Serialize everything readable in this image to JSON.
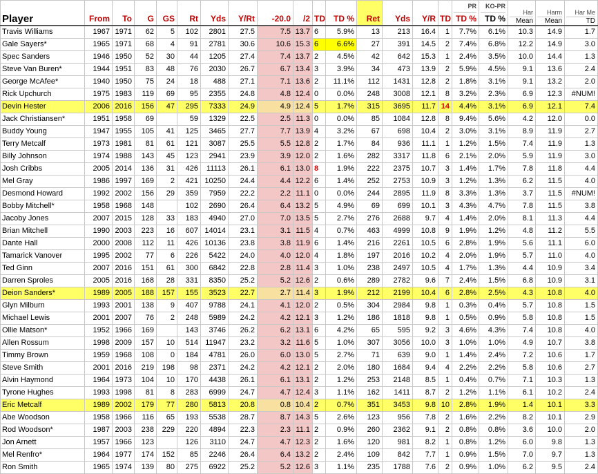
{
  "headers": {
    "player": "Player",
    "from": "From",
    "to": "To",
    "g": "G",
    "gs": "GS",
    "rt": "Rt",
    "yds": "Yds",
    "yrt": "Y/Rt",
    "minus20": "-20.0",
    "div2": "/2",
    "td": "TD",
    "tdpct": "TD %",
    "ret": "Ret",
    "yds2": "Yds",
    "yr": "Y/R",
    "td2": "TD",
    "tdpct2": "TD %",
    "pr_top": "PR",
    "kopr_top": "KO-PR",
    "kopr_td": "TD %",
    "harmean_top": "Har",
    "harmean": "Mean",
    "harm_top": "Harm",
    "harm": "Mean",
    "harme_top": "Har Me",
    "harme": "TD"
  },
  "rows": [
    {
      "name": "Travis Williams",
      "from": "1967",
      "to": "1971",
      "g": "62",
      "gs": "5",
      "rt": "102",
      "yds": "2801",
      "yrt": "27.5",
      "m20": "7.5",
      "d2": "13.7",
      "td": "6",
      "tdp": "5.9%",
      "ret": "13",
      "yds2": "213",
      "yr": "16.4",
      "td2": "1",
      "tdp2": "7.7%",
      "kopr": "6.1%",
      "hm": "10.3",
      "hm2": "14.9",
      "hm3": "1.7"
    },
    {
      "name": "Gale Sayers*",
      "from": "1965",
      "to": "1971",
      "g": "68",
      "gs": "4",
      "rt": "91",
      "yds": "2781",
      "yrt": "30.6",
      "m20": "10.6",
      "d2": "15.3",
      "td": "6",
      "tdp": "6.6%",
      "ret": "27",
      "yds2": "391",
      "yr": "14.5",
      "td2": "2",
      "tdp2": "7.4%",
      "kopr": "6.8%",
      "hm": "12.2",
      "hm2": "14.9",
      "hm3": "3.0",
      "yelTd": true
    },
    {
      "name": "Spec Sanders",
      "from": "1946",
      "to": "1950",
      "g": "52",
      "gs": "30",
      "rt": "44",
      "yds": "1205",
      "yrt": "27.4",
      "m20": "7.4",
      "d2": "13.7",
      "td": "2",
      "tdp": "4.5%",
      "ret": "42",
      "yds2": "642",
      "yr": "15.3",
      "td2": "1",
      "tdp2": "2.4%",
      "kopr": "3.5%",
      "hm": "10.0",
      "hm2": "14.4",
      "hm3": "1.3"
    },
    {
      "name": "Steve Van Buren*",
      "from": "1944",
      "to": "1951",
      "g": "83",
      "gs": "48",
      "rt": "76",
      "yds": "2030",
      "yrt": "26.7",
      "m20": "6.7",
      "d2": "13.4",
      "td": "3",
      "tdp": "3.9%",
      "ret": "34",
      "yds2": "473",
      "yr": "13.9",
      "td2": "2",
      "tdp2": "5.9%",
      "kopr": "4.5%",
      "hm": "9.1",
      "hm2": "13.6",
      "hm3": "2.4"
    },
    {
      "name": "George McAfee*",
      "from": "1940",
      "to": "1950",
      "g": "75",
      "gs": "24",
      "rt": "18",
      "yds": "488",
      "yrt": "27.1",
      "m20": "7.1",
      "d2": "13.6",
      "td": "2",
      "tdp": "11.1%",
      "ret": "112",
      "yds2": "1431",
      "yr": "12.8",
      "td2": "2",
      "tdp2": "1.8%",
      "kopr": "3.1%",
      "hm": "9.1",
      "hm2": "13.2",
      "hm3": "2.0"
    },
    {
      "name": "Rick Upchurch",
      "from": "1975",
      "to": "1983",
      "g": "119",
      "gs": "69",
      "rt": "95",
      "yds": "2355",
      "yrt": "24.8",
      "m20": "4.8",
      "d2": "12.4",
      "td": "0",
      "tdp": "0.0%",
      "ret": "248",
      "yds2": "3008",
      "yr": "12.1",
      "td2": "8",
      "tdp2": "3.2%",
      "kopr": "2.3%",
      "hm": "6.9",
      "hm2": "12.3",
      "hm3": "#NUM!"
    },
    {
      "name": "Devin Hester",
      "from": "2006",
      "to": "2016",
      "g": "156",
      "gs": "47",
      "rt": "295",
      "yds": "7333",
      "yrt": "24.9",
      "m20": "4.9",
      "d2": "12.4",
      "td": "5",
      "tdp": "1.7%",
      "ret": "315",
      "yds2": "3695",
      "yr": "11.7",
      "td2": "14",
      "tdp2": "4.4%",
      "kopr": "3.1%",
      "hm": "6.9",
      "hm2": "12.1",
      "hm3": "7.4",
      "hl": true,
      "redTd2": true
    },
    {
      "name": "Jack Christiansen*",
      "from": "1951",
      "to": "1958",
      "g": "69",
      "gs": "",
      "rt": "59",
      "yds": "1329",
      "yrt": "22.5",
      "m20": "2.5",
      "d2": "11.3",
      "td": "0",
      "tdp": "0.0%",
      "ret": "85",
      "yds2": "1084",
      "yr": "12.8",
      "td2": "8",
      "tdp2": "9.4%",
      "kopr": "5.6%",
      "hm": "4.2",
      "hm2": "12.0",
      "hm3": "0.0"
    },
    {
      "name": "Buddy Young",
      "from": "1947",
      "to": "1955",
      "g": "105",
      "gs": "41",
      "rt": "125",
      "yds": "3465",
      "yrt": "27.7",
      "m20": "7.7",
      "d2": "13.9",
      "td": "4",
      "tdp": "3.2%",
      "ret": "67",
      "yds2": "698",
      "yr": "10.4",
      "td2": "2",
      "tdp2": "3.0%",
      "kopr": "3.1%",
      "hm": "8.9",
      "hm2": "11.9",
      "hm3": "2.7"
    },
    {
      "name": "Terry Metcalf",
      "from": "1973",
      "to": "1981",
      "g": "81",
      "gs": "61",
      "rt": "121",
      "yds": "3087",
      "yrt": "25.5",
      "m20": "5.5",
      "d2": "12.8",
      "td": "2",
      "tdp": "1.7%",
      "ret": "84",
      "yds2": "936",
      "yr": "11.1",
      "td2": "1",
      "tdp2": "1.2%",
      "kopr": "1.5%",
      "hm": "7.4",
      "hm2": "11.9",
      "hm3": "1.3"
    },
    {
      "name": "Billy Johnson",
      "from": "1974",
      "to": "1988",
      "g": "143",
      "gs": "45",
      "rt": "123",
      "yds": "2941",
      "yrt": "23.9",
      "m20": "3.9",
      "d2": "12.0",
      "td": "2",
      "tdp": "1.6%",
      "ret": "282",
      "yds2": "3317",
      "yr": "11.8",
      "td2": "6",
      "tdp2": "2.1%",
      "kopr": "2.0%",
      "hm": "5.9",
      "hm2": "11.9",
      "hm3": "3.0"
    },
    {
      "name": "Josh Cribbs",
      "from": "2005",
      "to": "2014",
      "g": "136",
      "gs": "31",
      "rt": "426",
      "yds": "11113",
      "yrt": "26.1",
      "m20": "6.1",
      "d2": "13.0",
      "td": "8",
      "tdp": "1.9%",
      "ret": "222",
      "yds2": "2375",
      "yr": "10.7",
      "td2": "3",
      "tdp2": "1.4%",
      "kopr": "1.7%",
      "hm": "7.8",
      "hm2": "11.8",
      "hm3": "4.4",
      "redTd": true
    },
    {
      "name": "Mel Gray",
      "from": "1986",
      "to": "1997",
      "g": "169",
      "gs": "2",
      "rt": "421",
      "yds": "10250",
      "yrt": "24.4",
      "m20": "4.4",
      "d2": "12.2",
      "td": "6",
      "tdp": "1.4%",
      "ret": "252",
      "yds2": "2753",
      "yr": "10.9",
      "td2": "3",
      "tdp2": "1.2%",
      "kopr": "1.3%",
      "hm": "6.2",
      "hm2": "11.5",
      "hm3": "4.0"
    },
    {
      "name": "Desmond Howard",
      "from": "1992",
      "to": "2002",
      "g": "156",
      "gs": "29",
      "rt": "359",
      "yds": "7959",
      "yrt": "22.2",
      "m20": "2.2",
      "d2": "11.1",
      "td": "0",
      "tdp": "0.0%",
      "ret": "244",
      "yds2": "2895",
      "yr": "11.9",
      "td2": "8",
      "tdp2": "3.3%",
      "kopr": "1.3%",
      "hm": "3.7",
      "hm2": "11.5",
      "hm3": "#NUM!"
    },
    {
      "name": "Bobby Mitchell*",
      "from": "1958",
      "to": "1968",
      "g": "148",
      "gs": "",
      "rt": "102",
      "yds": "2690",
      "yrt": "26.4",
      "m20": "6.4",
      "d2": "13.2",
      "td": "5",
      "tdp": "4.9%",
      "ret": "69",
      "yds2": "699",
      "yr": "10.1",
      "td2": "3",
      "tdp2": "4.3%",
      "kopr": "4.7%",
      "hm": "7.8",
      "hm2": "11.5",
      "hm3": "3.8"
    },
    {
      "name": "Jacoby Jones",
      "from": "2007",
      "to": "2015",
      "g": "128",
      "gs": "33",
      "rt": "183",
      "yds": "4940",
      "yrt": "27.0",
      "m20": "7.0",
      "d2": "13.5",
      "td": "5",
      "tdp": "2.7%",
      "ret": "276",
      "yds2": "2688",
      "yr": "9.7",
      "td2": "4",
      "tdp2": "1.4%",
      "kopr": "2.0%",
      "hm": "8.1",
      "hm2": "11.3",
      "hm3": "4.4"
    },
    {
      "name": "Brian Mitchell",
      "from": "1990",
      "to": "2003",
      "g": "223",
      "gs": "16",
      "rt": "607",
      "yds": "14014",
      "yrt": "23.1",
      "m20": "3.1",
      "d2": "11.5",
      "td": "4",
      "tdp": "0.7%",
      "ret": "463",
      "yds2": "4999",
      "yr": "10.8",
      "td2": "9",
      "tdp2": "1.9%",
      "kopr": "1.2%",
      "hm": "4.8",
      "hm2": "11.2",
      "hm3": "5.5"
    },
    {
      "name": "Dante Hall",
      "from": "2000",
      "to": "2008",
      "g": "112",
      "gs": "11",
      "rt": "426",
      "yds": "10136",
      "yrt": "23.8",
      "m20": "3.8",
      "d2": "11.9",
      "td": "6",
      "tdp": "1.4%",
      "ret": "216",
      "yds2": "2261",
      "yr": "10.5",
      "td2": "6",
      "tdp2": "2.8%",
      "kopr": "1.9%",
      "hm": "5.6",
      "hm2": "11.1",
      "hm3": "6.0"
    },
    {
      "name": "Tamarick Vanover",
      "from": "1995",
      "to": "2002",
      "g": "77",
      "gs": "6",
      "rt": "226",
      "yds": "5422",
      "yrt": "24.0",
      "m20": "4.0",
      "d2": "12.0",
      "td": "4",
      "tdp": "1.8%",
      "ret": "197",
      "yds2": "2016",
      "yr": "10.2",
      "td2": "4",
      "tdp2": "2.0%",
      "kopr": "1.9%",
      "hm": "5.7",
      "hm2": "11.0",
      "hm3": "4.0"
    },
    {
      "name": "Ted Ginn",
      "from": "2007",
      "to": "2016",
      "g": "151",
      "gs": "61",
      "rt": "300",
      "yds": "6842",
      "yrt": "22.8",
      "m20": "2.8",
      "d2": "11.4",
      "td": "3",
      "tdp": "1.0%",
      "ret": "238",
      "yds2": "2497",
      "yr": "10.5",
      "td2": "4",
      "tdp2": "1.7%",
      "kopr": "1.3%",
      "hm": "4.4",
      "hm2": "10.9",
      "hm3": "3.4"
    },
    {
      "name": "Darren Sproles",
      "from": "2005",
      "to": "2016",
      "g": "168",
      "gs": "28",
      "rt": "331",
      "yds": "8350",
      "yrt": "25.2",
      "m20": "5.2",
      "d2": "12.6",
      "td": "2",
      "tdp": "0.6%",
      "ret": "289",
      "yds2": "2782",
      "yr": "9.6",
      "td2": "7",
      "tdp2": "2.4%",
      "kopr": "1.5%",
      "hm": "6.8",
      "hm2": "10.9",
      "hm3": "3.1"
    },
    {
      "name": "Deion Sanders*",
      "from": "1989",
      "to": "2005",
      "g": "188",
      "gs": "157",
      "rt": "155",
      "yds": "3523",
      "yrt": "22.7",
      "m20": "2.7",
      "d2": "11.4",
      "td": "3",
      "tdp": "1.9%",
      "ret": "212",
      "yds2": "2199",
      "yr": "10.4",
      "td2": "6",
      "tdp2": "2.8%",
      "kopr": "2.5%",
      "hm": "4.3",
      "hm2": "10.8",
      "hm3": "4.0",
      "hl": true
    },
    {
      "name": "Glyn Milburn",
      "from": "1993",
      "to": "2001",
      "g": "138",
      "gs": "9",
      "rt": "407",
      "yds": "9788",
      "yrt": "24.1",
      "m20": "4.1",
      "d2": "12.0",
      "td": "2",
      "tdp": "0.5%",
      "ret": "304",
      "yds2": "2984",
      "yr": "9.8",
      "td2": "1",
      "tdp2": "0.3%",
      "kopr": "0.4%",
      "hm": "5.7",
      "hm2": "10.8",
      "hm3": "1.5"
    },
    {
      "name": "Michael Lewis",
      "from": "2001",
      "to": "2007",
      "g": "76",
      "gs": "2",
      "rt": "248",
      "yds": "5989",
      "yrt": "24.2",
      "m20": "4.2",
      "d2": "12.1",
      "td": "3",
      "tdp": "1.2%",
      "ret": "186",
      "yds2": "1818",
      "yr": "9.8",
      "td2": "1",
      "tdp2": "0.5%",
      "kopr": "0.9%",
      "hm": "5.8",
      "hm2": "10.8",
      "hm3": "1.5"
    },
    {
      "name": "Ollie Matson*",
      "from": "1952",
      "to": "1966",
      "g": "169",
      "gs": "",
      "rt": "143",
      "yds": "3746",
      "yrt": "26.2",
      "m20": "6.2",
      "d2": "13.1",
      "td": "6",
      "tdp": "4.2%",
      "ret": "65",
      "yds2": "595",
      "yr": "9.2",
      "td2": "3",
      "tdp2": "4.6%",
      "kopr": "4.3%",
      "hm": "7.4",
      "hm2": "10.8",
      "hm3": "4.0"
    },
    {
      "name": "Allen Rossum",
      "from": "1998",
      "to": "2009",
      "g": "157",
      "gs": "10",
      "rt": "514",
      "yds": "11947",
      "yrt": "23.2",
      "m20": "3.2",
      "d2": "11.6",
      "td": "5",
      "tdp": "1.0%",
      "ret": "307",
      "yds2": "3056",
      "yr": "10.0",
      "td2": "3",
      "tdp2": "1.0%",
      "kopr": "1.0%",
      "hm": "4.9",
      "hm2": "10.7",
      "hm3": "3.8"
    },
    {
      "name": "Timmy Brown",
      "from": "1959",
      "to": "1968",
      "g": "108",
      "gs": "0",
      "rt": "184",
      "yds": "4781",
      "yrt": "26.0",
      "m20": "6.0",
      "d2": "13.0",
      "td": "5",
      "tdp": "2.7%",
      "ret": "71",
      "yds2": "639",
      "yr": "9.0",
      "td2": "1",
      "tdp2": "1.4%",
      "kopr": "2.4%",
      "hm": "7.2",
      "hm2": "10.6",
      "hm3": "1.7"
    },
    {
      "name": "Steve Smith",
      "from": "2001",
      "to": "2016",
      "g": "219",
      "gs": "198",
      "rt": "98",
      "yds": "2371",
      "yrt": "24.2",
      "m20": "4.2",
      "d2": "12.1",
      "td": "2",
      "tdp": "2.0%",
      "ret": "180",
      "yds2": "1684",
      "yr": "9.4",
      "td2": "4",
      "tdp2": "2.2%",
      "kopr": "2.2%",
      "hm": "5.8",
      "hm2": "10.6",
      "hm3": "2.7"
    },
    {
      "name": "Alvin Haymond",
      "from": "1964",
      "to": "1973",
      "g": "104",
      "gs": "10",
      "rt": "170",
      "yds": "4438",
      "yrt": "26.1",
      "m20": "6.1",
      "d2": "13.1",
      "td": "2",
      "tdp": "1.2%",
      "ret": "253",
      "yds2": "2148",
      "yr": "8.5",
      "td2": "1",
      "tdp2": "0.4%",
      "kopr": "0.7%",
      "hm": "7.1",
      "hm2": "10.3",
      "hm3": "1.3"
    },
    {
      "name": "Tyrone Hughes",
      "from": "1993",
      "to": "1998",
      "g": "81",
      "gs": "8",
      "rt": "283",
      "yds": "6999",
      "yrt": "24.7",
      "m20": "4.7",
      "d2": "12.4",
      "td": "3",
      "tdp": "1.1%",
      "ret": "162",
      "yds2": "1411",
      "yr": "8.7",
      "td2": "2",
      "tdp2": "1.2%",
      "kopr": "1.1%",
      "hm": "6.1",
      "hm2": "10.2",
      "hm3": "2.4"
    },
    {
      "name": "Eric Metcalf",
      "from": "1989",
      "to": "2002",
      "g": "179",
      "gs": "77",
      "rt": "280",
      "yds": "5813",
      "yrt": "20.8",
      "m20": "0.8",
      "d2": "10.4",
      "td": "2",
      "tdp": "0.7%",
      "ret": "351",
      "yds2": "3453",
      "yr": "9.8",
      "td2": "10",
      "tdp2": "2.8%",
      "kopr": "1.9%",
      "hm": "1.4",
      "hm2": "10.1",
      "hm3": "3.3",
      "hl": true
    },
    {
      "name": "Abe Woodson",
      "from": "1958",
      "to": "1966",
      "g": "116",
      "gs": "65",
      "rt": "193",
      "yds": "5538",
      "yrt": "28.7",
      "m20": "8.7",
      "d2": "14.3",
      "td": "5",
      "tdp": "2.6%",
      "ret": "123",
      "yds2": "956",
      "yr": "7.8",
      "td2": "2",
      "tdp2": "1.6%",
      "kopr": "2.2%",
      "hm": "8.2",
      "hm2": "10.1",
      "hm3": "2.9"
    },
    {
      "name": "Rod Woodson*",
      "from": "1987",
      "to": "2003",
      "g": "238",
      "gs": "229",
      "rt": "220",
      "yds": "4894",
      "yrt": "22.3",
      "m20": "2.3",
      "d2": "11.1",
      "td": "2",
      "tdp": "0.9%",
      "ret": "260",
      "yds2": "2362",
      "yr": "9.1",
      "td2": "2",
      "tdp2": "0.8%",
      "kopr": "0.8%",
      "hm": "3.6",
      "hm2": "10.0",
      "hm3": "2.0"
    },
    {
      "name": "Jon Arnett",
      "from": "1957",
      "to": "1966",
      "g": "123",
      "gs": "",
      "rt": "126",
      "yds": "3110",
      "yrt": "24.7",
      "m20": "4.7",
      "d2": "12.3",
      "td": "2",
      "tdp": "1.6%",
      "ret": "120",
      "yds2": "981",
      "yr": "8.2",
      "td2": "1",
      "tdp2": "0.8%",
      "kopr": "1.2%",
      "hm": "6.0",
      "hm2": "9.8",
      "hm3": "1.3"
    },
    {
      "name": "Mel Renfro*",
      "from": "1964",
      "to": "1977",
      "g": "174",
      "gs": "152",
      "rt": "85",
      "yds": "2246",
      "yrt": "26.4",
      "m20": "6.4",
      "d2": "13.2",
      "td": "2",
      "tdp": "2.4%",
      "ret": "109",
      "yds2": "842",
      "yr": "7.7",
      "td2": "1",
      "tdp2": "0.9%",
      "kopr": "1.5%",
      "hm": "7.0",
      "hm2": "9.7",
      "hm3": "1.3"
    },
    {
      "name": "Ron Smith",
      "from": "1965",
      "to": "1974",
      "g": "139",
      "gs": "80",
      "rt": "275",
      "yds": "6922",
      "yrt": "25.2",
      "m20": "5.2",
      "d2": "12.6",
      "td": "3",
      "tdp": "1.1%",
      "ret": "235",
      "yds2": "1788",
      "yr": "7.6",
      "td2": "2",
      "tdp2": "0.9%",
      "kopr": "1.0%",
      "hm": "6.2",
      "hm2": "9.5",
      "hm3": "2.4"
    }
  ]
}
